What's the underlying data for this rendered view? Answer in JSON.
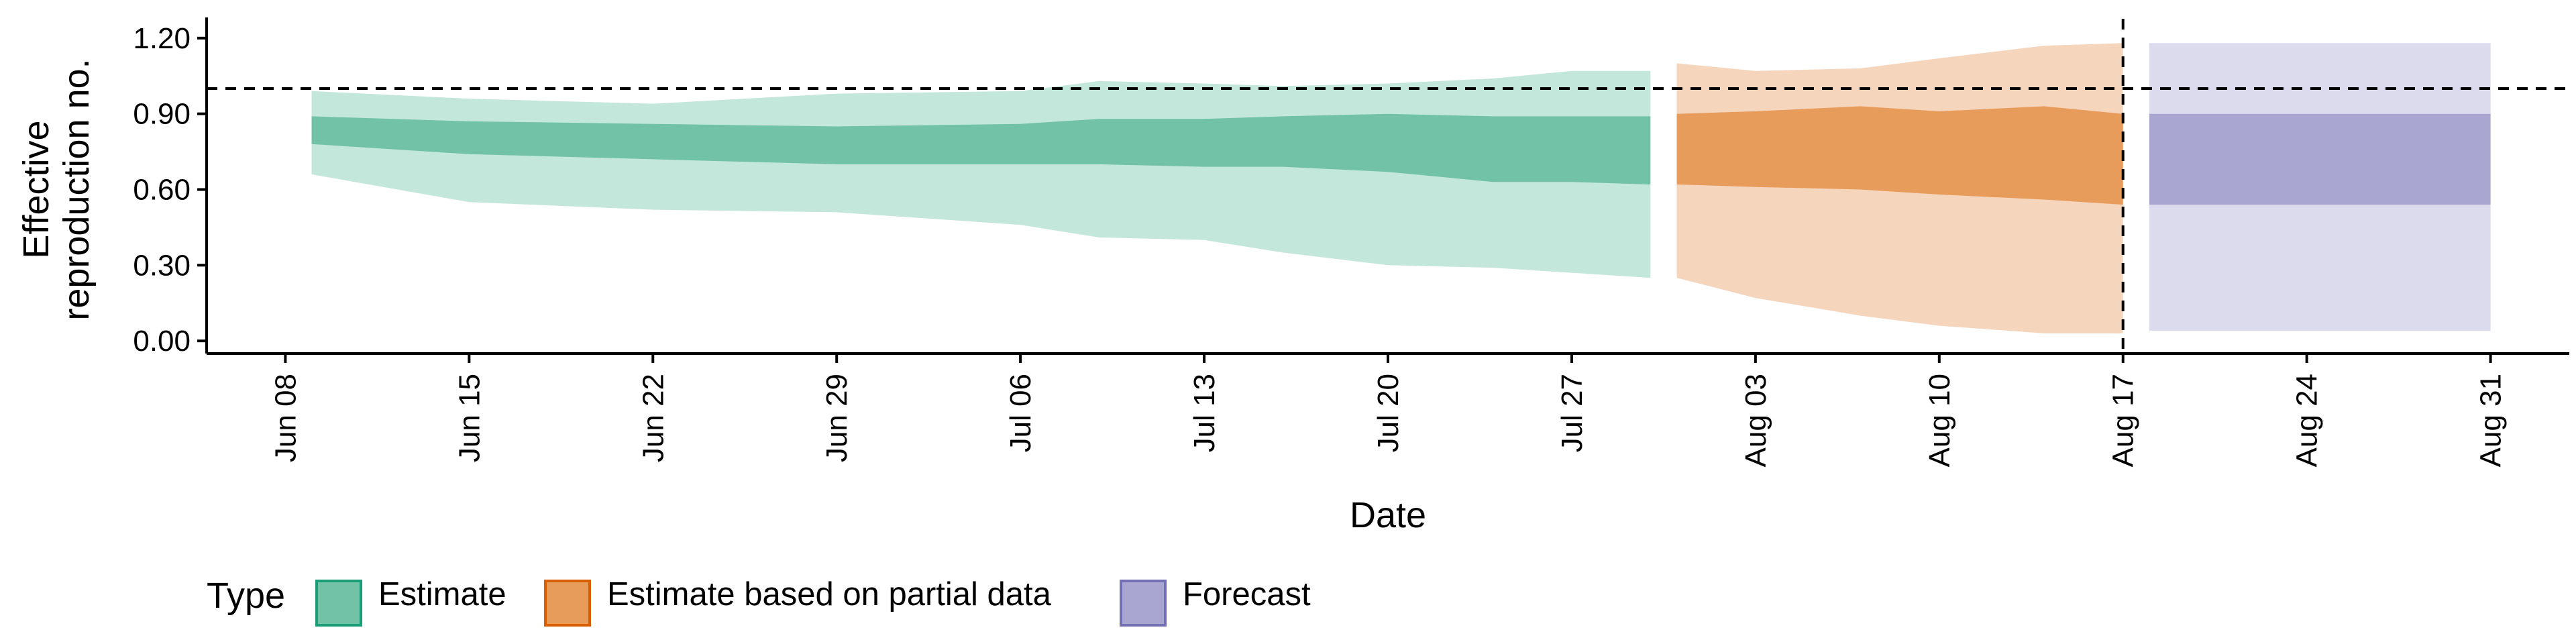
{
  "chart_data": {
    "type": "area",
    "title": "",
    "xlabel": "Date",
    "ylabel": "Effective reproduction no.",
    "ylabel_lines": [
      "Effective",
      "reproduction no."
    ],
    "x_ticks": [
      "2020-06-08",
      "2020-06-15",
      "2020-06-22",
      "2020-06-29",
      "2020-07-06",
      "2020-07-13",
      "2020-07-20",
      "2020-07-27",
      "2020-08-03",
      "2020-08-10",
      "2020-08-17",
      "2020-08-24",
      "2020-08-31"
    ],
    "x_tick_labels": [
      "Jun 08",
      "Jun 15",
      "Jun 22",
      "Jun 29",
      "Jul 06",
      "Jul 13",
      "Jul 20",
      "Jul 27",
      "Aug 03",
      "Aug 10",
      "Aug 17",
      "Aug 24",
      "Aug 31"
    ],
    "xlim": [
      "2020-06-05",
      "2020-09-03"
    ],
    "y_ticks": [
      0.0,
      0.3,
      0.6,
      0.9,
      1.2
    ],
    "y_tick_labels": [
      "0.00",
      "0.30",
      "0.60",
      "0.90",
      "1.20"
    ],
    "ylim": [
      -0.05,
      1.25
    ],
    "grid": false,
    "reference_lines": [
      {
        "axis": "y",
        "value": 1.0,
        "style": "dashed"
      },
      {
        "axis": "x",
        "value": "2020-08-17",
        "style": "dashed"
      }
    ],
    "legend": {
      "title": "Type",
      "position": "bottom-left",
      "entries": [
        {
          "label": "Estimate",
          "fill": "#72c2a8",
          "stroke": "#1b9e77"
        },
        {
          "label": "Estimate based on partial data",
          "fill": "#e89c5c",
          "stroke": "#d95f02"
        },
        {
          "label": "Forecast",
          "fill": "#a9a6d2",
          "stroke": "#7570b3"
        }
      ]
    },
    "series": [
      {
        "name": "Estimate",
        "color": "#1b9e77",
        "outer_color": "#c4e7dc",
        "inner_color": "#72c2a8",
        "x": [
          "2020-06-09",
          "2020-06-15",
          "2020-06-22",
          "2020-06-29",
          "2020-07-06",
          "2020-07-09",
          "2020-07-13",
          "2020-07-16",
          "2020-07-20",
          "2020-07-24",
          "2020-07-27",
          "2020-07-30"
        ],
        "outer_lower": [
          0.66,
          0.55,
          0.52,
          0.51,
          0.46,
          0.41,
          0.4,
          0.35,
          0.3,
          0.29,
          0.27,
          0.25
        ],
        "outer_upper": [
          0.99,
          0.96,
          0.94,
          0.98,
          0.99,
          1.03,
          1.02,
          1.01,
          1.02,
          1.04,
          1.07,
          1.07
        ],
        "inner_lower": [
          0.78,
          0.74,
          0.72,
          0.7,
          0.7,
          0.7,
          0.69,
          0.69,
          0.67,
          0.63,
          0.63,
          0.62
        ],
        "inner_upper": [
          0.89,
          0.87,
          0.86,
          0.85,
          0.86,
          0.88,
          0.88,
          0.89,
          0.9,
          0.89,
          0.89,
          0.89
        ]
      },
      {
        "name": "Estimate based on partial data",
        "color": "#d95f02",
        "outer_color": "#f6d5bd",
        "inner_color": "#e89c5c",
        "x": [
          "2020-07-31",
          "2020-08-03",
          "2020-08-07",
          "2020-08-10",
          "2020-08-14",
          "2020-08-17"
        ],
        "outer_lower": [
          0.25,
          0.17,
          0.1,
          0.06,
          0.03,
          0.03
        ],
        "outer_upper": [
          1.1,
          1.07,
          1.08,
          1.12,
          1.17,
          1.18
        ],
        "inner_lower": [
          0.62,
          0.61,
          0.6,
          0.58,
          0.56,
          0.54
        ],
        "inner_upper": [
          0.9,
          0.91,
          0.93,
          0.91,
          0.93,
          0.9
        ]
      },
      {
        "name": "Forecast",
        "color": "#7570b3",
        "outer_color": "#dcdbee",
        "inner_color": "#a9a6d2",
        "x": [
          "2020-08-18",
          "2020-08-31"
        ],
        "outer_lower": [
          0.04,
          0.04
        ],
        "outer_upper": [
          1.18,
          1.18
        ],
        "inner_lower": [
          0.54,
          0.54
        ],
        "inner_upper": [
          0.9,
          0.9
        ]
      }
    ]
  }
}
